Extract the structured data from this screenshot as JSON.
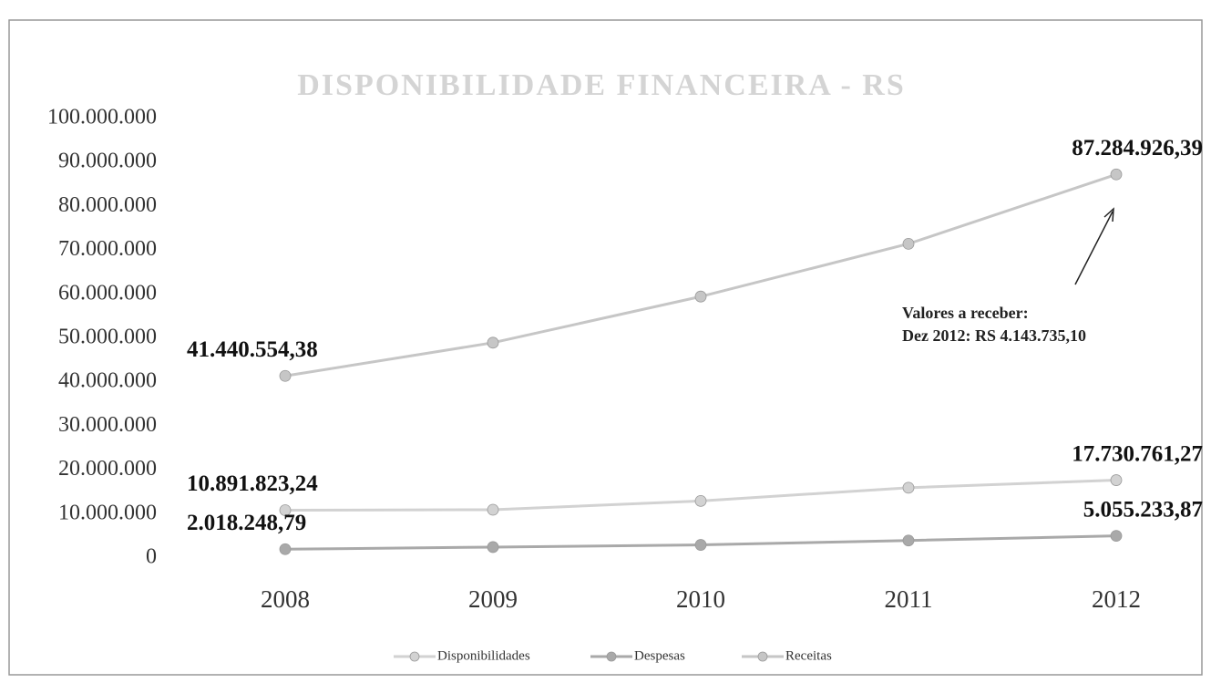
{
  "chart_data": {
    "type": "line",
    "title": "DISPONIBILIDADE FINANCEIRA - RS",
    "categories": [
      "2008",
      "2009",
      "2010",
      "2011",
      "2012"
    ],
    "series": [
      {
        "name": "Disponibilidades",
        "color": "#d2d2d2",
        "values": [
          10891823.24,
          11000000,
          13000000,
          16000000,
          17730761.27
        ],
        "value_labels": [
          "10.891.823,24",
          null,
          null,
          null,
          "17.730.761,27"
        ]
      },
      {
        "name": "Despesas",
        "color": "#a9a9a9",
        "values": [
          2018248.79,
          2500000,
          3000000,
          4000000,
          5055233.87
        ],
        "value_labels": [
          "2.018.248,79",
          null,
          null,
          null,
          "5.055.233,87"
        ]
      },
      {
        "name": "Receitas",
        "color": "#c6c6c6",
        "values": [
          41440554.38,
          49000000,
          59500000,
          71500000,
          87284926.39
        ],
        "value_labels": [
          "41.440.554,38",
          null,
          null,
          null,
          "87.284.926,39"
        ]
      }
    ],
    "ylim": [
      0,
      100000000
    ],
    "yticks": [
      0,
      {
        "value": 10000000,
        "label": "10.000.000"
      },
      {
        "value": 20000000,
        "label": "20.000.000"
      },
      {
        "value": 30000000,
        "label": "30.000.000"
      },
      {
        "value": 40000000,
        "label": "40.000.000"
      },
      {
        "value": 50000000,
        "label": "50.000.000"
      },
      {
        "value": 60000000,
        "label": "60.000.000"
      },
      {
        "value": 70000000,
        "label": "70.000.000"
      },
      {
        "value": 80000000,
        "label": "80.000.000"
      },
      {
        "value": 90000000,
        "label": "90.000.000"
      },
      {
        "value": 100000000,
        "label": "100.000.000"
      }
    ],
    "annotation": [
      "Valores a receber:",
      "Dez 2012: RS 4.143.735,10"
    ],
    "grid": false,
    "legend": "bottom"
  }
}
